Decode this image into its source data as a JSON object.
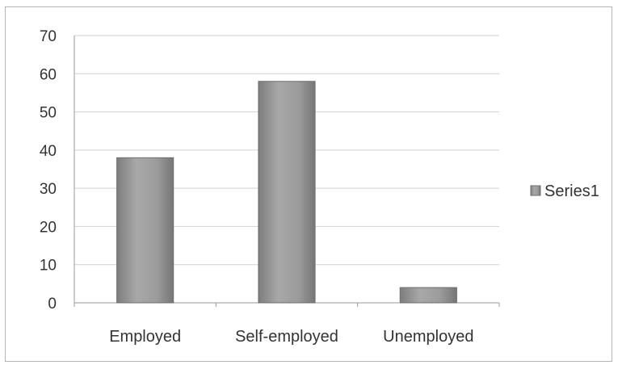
{
  "chart_data": {
    "type": "bar",
    "categories": [
      "Employed",
      "Self-employed",
      "Unemployed"
    ],
    "series": [
      {
        "name": "Series1",
        "values": [
          38,
          58,
          4
        ]
      }
    ],
    "ylim": [
      0,
      70
    ],
    "yticks": [
      0,
      10,
      20,
      30,
      40,
      50,
      60,
      70
    ],
    "grid": true,
    "legend_position": "right",
    "colors": {
      "bar_fill": "#9a9a9a",
      "bar_edge": "#6e6e6e",
      "grid": "#d0d0d0",
      "axis": "#999999"
    }
  }
}
